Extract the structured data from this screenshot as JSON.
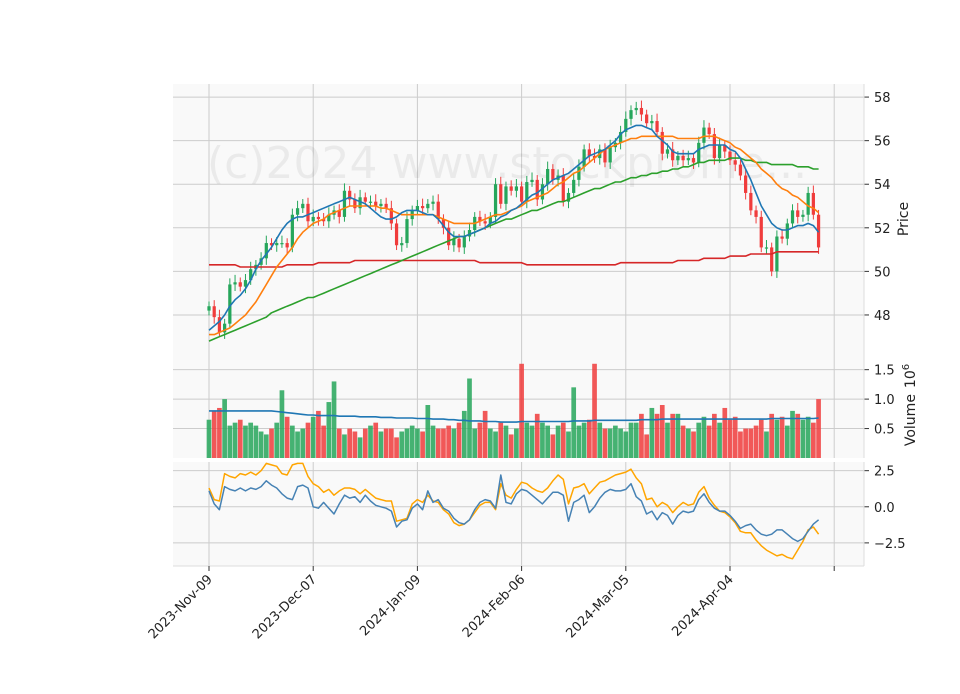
{
  "chart_data": {
    "type": "candlestick",
    "watermark": "(c)2024 www.stockprofile...",
    "x_tick_labels": [
      "2023-Nov-09",
      "2023-Dec-07",
      "2024-Jan-09",
      "2024-Feb-06",
      "2024-Mar-05",
      "2024-Apr-04"
    ],
    "x_tick_index": [
      0,
      20,
      40,
      60,
      80,
      100
    ],
    "colors": {
      "up": "#26a65b",
      "down": "#f03c3c",
      "ma_fast": "#1f77b4",
      "ma_mid": "#ff7f0e",
      "ma_slow": "#2ca02c",
      "ma_long": "#d62728",
      "vol_ma": "#1f77b4",
      "osc1": "#4682b4",
      "osc2": "#ffa500"
    },
    "price_panel": {
      "ylabel": "Price",
      "ylim": [
        46.3,
        58.6
      ],
      "yticks": [
        48,
        50,
        52,
        54,
        56,
        58
      ],
      "close": [
        48.4,
        47.9,
        47.2,
        47.6,
        49.4,
        49.5,
        49.3,
        49.6,
        50.1,
        50.3,
        50.6,
        51.3,
        51.2,
        51.3,
        51.3,
        51.1,
        52.6,
        52.9,
        53.1,
        52.3,
        52.5,
        52.4,
        52.3,
        52.6,
        52.8,
        52.5,
        53.7,
        53.3,
        52.9,
        53.4,
        53.2,
        53.2,
        53.0,
        53.1,
        52.9,
        52.2,
        51.2,
        51.3,
        52.4,
        52.8,
        53.0,
        52.9,
        53.1,
        53.2,
        52.4,
        52.0,
        51.2,
        51.5,
        51.1,
        51.6,
        51.9,
        52.5,
        52.3,
        52.2,
        52.5,
        54.0,
        53.1,
        53.9,
        53.7,
        53.9,
        53.2,
        54.1,
        54.2,
        53.3,
        54.0,
        54.7,
        54.2,
        54.4,
        53.2,
        53.6,
        54.2,
        54.8,
        55.6,
        55.3,
        55.2,
        55.6,
        55.0,
        55.7,
        55.9,
        56.4,
        57.0,
        57.4,
        57.5,
        57.2,
        56.8,
        56.9,
        56.4,
        55.4,
        55.6,
        55.1,
        55.3,
        55.1,
        55.2,
        55.0,
        55.9,
        56.6,
        56.3,
        55.2,
        55.8,
        55.5,
        55.1,
        54.9,
        54.4,
        53.6,
        52.8,
        52.5,
        51.1,
        51.1,
        50.0,
        51.6,
        51.5,
        52.2,
        52.8,
        52.5,
        52.6,
        53.6,
        52.6,
        51.1
      ],
      "ma_fast": [
        47.3,
        47.5,
        47.7,
        48.0,
        48.4,
        48.7,
        48.9,
        49.2,
        49.6,
        50.1,
        50.5,
        50.8,
        51.1,
        51.5,
        51.9,
        52.2,
        52.4,
        52.5,
        52.5,
        52.6,
        52.7,
        52.8,
        52.9,
        53.0,
        53.1,
        53.2,
        53.3,
        53.4,
        53.3,
        53.2,
        53.1,
        52.9,
        52.7,
        52.5,
        52.4,
        52.4,
        52.5,
        52.7,
        52.8,
        52.8,
        52.8,
        52.7,
        52.6,
        52.6,
        52.4,
        52.1,
        51.8,
        51.6,
        51.6,
        51.6,
        51.7,
        51.8,
        51.9,
        52.0,
        52.2,
        52.3,
        52.5,
        52.6,
        52.8,
        52.9,
        53.1,
        53.3,
        53.5,
        53.6,
        53.8,
        54.0,
        54.2,
        54.3,
        54.4,
        54.5,
        54.7,
        54.9,
        55.1,
        55.3,
        55.4,
        55.5,
        55.6,
        55.8,
        56.0,
        56.3,
        56.5,
        56.6,
        56.7,
        56.7,
        56.6,
        56.5,
        56.2,
        56.0,
        55.8,
        55.5,
        55.4,
        55.4,
        55.4,
        55.4,
        55.6,
        55.7,
        55.8,
        55.8,
        55.8,
        55.8,
        55.6,
        55.5,
        55.2,
        54.7,
        54.2,
        53.6,
        53.0,
        52.6,
        52.2,
        52.0,
        51.9,
        51.9,
        52.0,
        52.1,
        52.1,
        52.2,
        52.1,
        51.8
      ],
      "ma_mid": [
        47.1,
        47.1,
        47.2,
        47.3,
        47.4,
        47.6,
        47.8,
        48.0,
        48.3,
        48.6,
        49.0,
        49.4,
        49.8,
        50.2,
        50.5,
        50.8,
        51.1,
        51.5,
        51.8,
        52.0,
        52.2,
        52.3,
        52.4,
        52.6,
        52.7,
        52.8,
        52.9,
        53.0,
        53.0,
        53.0,
        53.0,
        53.0,
        53.0,
        52.9,
        52.9,
        52.8,
        52.7,
        52.6,
        52.6,
        52.6,
        52.6,
        52.6,
        52.6,
        52.6,
        52.5,
        52.4,
        52.3,
        52.2,
        52.2,
        52.2,
        52.2,
        52.2,
        52.3,
        52.4,
        52.5,
        52.6,
        52.6,
        52.7,
        52.8,
        52.9,
        53.0,
        53.2,
        53.3,
        53.4,
        53.5,
        53.6,
        53.8,
        54.0,
        54.1,
        54.3,
        54.5,
        54.6,
        54.8,
        55.0,
        55.2,
        55.4,
        55.6,
        55.7,
        55.8,
        55.9,
        56.0,
        56.1,
        56.1,
        56.2,
        56.2,
        56.2,
        56.2,
        56.2,
        56.2,
        56.2,
        56.1,
        56.1,
        56.1,
        56.1,
        56.1,
        56.2,
        56.2,
        56.2,
        56.1,
        56.0,
        55.9,
        55.7,
        55.6,
        55.4,
        55.2,
        55.0,
        54.7,
        54.5,
        54.3,
        54.0,
        53.8,
        53.7,
        53.5,
        53.4,
        53.2,
        53.0,
        52.9,
        52.7
      ],
      "ma_slow": [
        46.8,
        46.9,
        47.0,
        47.1,
        47.2,
        47.3,
        47.4,
        47.5,
        47.6,
        47.7,
        47.8,
        47.9,
        48.1,
        48.2,
        48.3,
        48.4,
        48.5,
        48.6,
        48.7,
        48.8,
        48.8,
        48.9,
        49.0,
        49.1,
        49.2,
        49.3,
        49.4,
        49.5,
        49.6,
        49.7,
        49.8,
        49.9,
        50.0,
        50.1,
        50.2,
        50.3,
        50.4,
        50.5,
        50.6,
        50.7,
        50.8,
        50.9,
        51.0,
        51.1,
        51.2,
        51.3,
        51.4,
        51.5,
        51.6,
        51.6,
        51.7,
        51.8,
        51.9,
        52.0,
        52.1,
        52.2,
        52.3,
        52.4,
        52.4,
        52.5,
        52.6,
        52.7,
        52.8,
        52.8,
        52.9,
        53.0,
        53.1,
        53.2,
        53.2,
        53.3,
        53.4,
        53.5,
        53.6,
        53.7,
        53.8,
        53.8,
        53.9,
        54.0,
        54.1,
        54.1,
        54.2,
        54.3,
        54.3,
        54.4,
        54.4,
        54.5,
        54.5,
        54.6,
        54.6,
        54.7,
        54.7,
        54.8,
        54.8,
        54.9,
        55.0,
        55.0,
        55.1,
        55.1,
        55.1,
        55.1,
        55.2,
        55.2,
        55.2,
        55.1,
        55.1,
        55.0,
        55.0,
        55.0,
        54.9,
        54.9,
        54.9,
        54.9,
        54.9,
        54.8,
        54.8,
        54.8,
        54.7,
        54.7
      ],
      "ma_long": [
        50.3,
        50.3,
        50.3,
        50.3,
        50.3,
        50.3,
        50.2,
        50.2,
        50.2,
        50.2,
        50.2,
        50.2,
        50.2,
        50.2,
        50.2,
        50.3,
        50.3,
        50.3,
        50.3,
        50.3,
        50.3,
        50.4,
        50.4,
        50.4,
        50.4,
        50.4,
        50.4,
        50.4,
        50.5,
        50.5,
        50.5,
        50.5,
        50.5,
        50.5,
        50.5,
        50.5,
        50.5,
        50.5,
        50.5,
        50.5,
        50.5,
        50.5,
        50.5,
        50.5,
        50.5,
        50.5,
        50.5,
        50.5,
        50.5,
        50.5,
        50.5,
        50.5,
        50.4,
        50.4,
        50.4,
        50.4,
        50.4,
        50.4,
        50.4,
        50.4,
        50.4,
        50.3,
        50.3,
        50.3,
        50.3,
        50.3,
        50.3,
        50.3,
        50.3,
        50.3,
        50.3,
        50.3,
        50.3,
        50.3,
        50.3,
        50.3,
        50.3,
        50.3,
        50.3,
        50.4,
        50.4,
        50.4,
        50.4,
        50.4,
        50.4,
        50.4,
        50.4,
        50.4,
        50.4,
        50.4,
        50.5,
        50.5,
        50.5,
        50.5,
        50.5,
        50.6,
        50.6,
        50.6,
        50.6,
        50.6,
        50.7,
        50.7,
        50.7,
        50.7,
        50.8,
        50.8,
        50.8,
        50.8,
        50.8,
        50.9,
        50.9,
        50.9,
        50.9,
        50.9,
        50.9,
        50.9,
        50.9,
        50.9
      ]
    },
    "volume_panel": {
      "ylabel": "Volume  10^6",
      "ylabel_main": "Volume",
      "ylabel_exp": "10",
      "ylabel_sup": "6",
      "ylim": [
        0,
        1.8
      ],
      "yticks": [
        0.5,
        1.0,
        1.5
      ],
      "ytick_labels": [
        "0.5",
        "1.0",
        "1.5"
      ],
      "volume": [
        0.65,
        0.8,
        0.85,
        1.0,
        0.55,
        0.6,
        0.65,
        0.55,
        0.6,
        0.55,
        0.45,
        0.4,
        0.5,
        0.6,
        1.15,
        0.7,
        0.55,
        0.45,
        0.5,
        0.6,
        0.7,
        0.8,
        0.55,
        0.95,
        1.3,
        0.5,
        0.4,
        0.5,
        0.45,
        0.35,
        0.5,
        0.55,
        0.6,
        0.45,
        0.5,
        0.5,
        0.35,
        0.45,
        0.5,
        0.55,
        0.5,
        0.45,
        0.9,
        0.55,
        0.5,
        0.5,
        0.55,
        0.5,
        0.6,
        0.8,
        1.35,
        0.5,
        0.6,
        0.8,
        0.5,
        0.45,
        0.6,
        0.55,
        0.4,
        0.5,
        1.6,
        0.6,
        0.55,
        0.75,
        0.6,
        0.55,
        0.4,
        0.55,
        0.6,
        0.45,
        1.2,
        0.55,
        0.6,
        0.65,
        1.6,
        0.6,
        0.5,
        0.5,
        0.55,
        0.5,
        0.45,
        0.6,
        0.6,
        0.75,
        0.4,
        0.85,
        0.75,
        0.9,
        0.6,
        0.75,
        0.75,
        0.55,
        0.5,
        0.45,
        0.6,
        0.7,
        0.55,
        0.75,
        0.6,
        0.85,
        0.65,
        0.7,
        0.45,
        0.5,
        0.5,
        0.55,
        0.65,
        0.45,
        0.75,
        0.65,
        0.7,
        0.55,
        0.8,
        0.75,
        0.65,
        0.7,
        0.6,
        1.0
      ],
      "vol_ma": [
        0.8,
        0.8,
        0.8,
        0.8,
        0.8,
        0.8,
        0.8,
        0.8,
        0.8,
        0.8,
        0.8,
        0.8,
        0.8,
        0.79,
        0.78,
        0.77,
        0.76,
        0.75,
        0.74,
        0.73,
        0.73,
        0.72,
        0.72,
        0.72,
        0.72,
        0.71,
        0.71,
        0.71,
        0.71,
        0.7,
        0.7,
        0.7,
        0.7,
        0.69,
        0.69,
        0.69,
        0.68,
        0.68,
        0.68,
        0.68,
        0.67,
        0.67,
        0.67,
        0.66,
        0.66,
        0.66,
        0.65,
        0.65,
        0.64,
        0.64,
        0.63,
        0.63,
        0.63,
        0.62,
        0.62,
        0.62,
        0.61,
        0.61,
        0.61,
        0.61,
        0.62,
        0.62,
        0.62,
        0.62,
        0.62,
        0.62,
        0.62,
        0.62,
        0.62,
        0.62,
        0.63,
        0.63,
        0.63,
        0.63,
        0.64,
        0.64,
        0.64,
        0.64,
        0.64,
        0.64,
        0.64,
        0.64,
        0.64,
        0.65,
        0.65,
        0.65,
        0.65,
        0.66,
        0.66,
        0.66,
        0.66,
        0.66,
        0.66,
        0.66,
        0.66,
        0.66,
        0.66,
        0.66,
        0.66,
        0.66,
        0.66,
        0.66,
        0.66,
        0.66,
        0.66,
        0.66,
        0.66,
        0.66,
        0.67,
        0.67,
        0.67,
        0.67,
        0.67,
        0.67,
        0.67,
        0.67,
        0.67,
        0.68
      ]
    },
    "oscillator_panel": {
      "ylim": [
        -4.1,
        3.1
      ],
      "yticks": [
        -2.5,
        0.0,
        2.5
      ],
      "ytick_labels": [
        "−2.5",
        "0.0",
        "2.5"
      ],
      "line1": [
        1.1,
        0.2,
        -0.2,
        1.4,
        1.2,
        1.1,
        1.3,
        1.1,
        1.3,
        1.2,
        1.4,
        1.8,
        1.5,
        1.3,
        0.9,
        0.6,
        0.5,
        1.4,
        1.5,
        1.3,
        0.0,
        -0.1,
        0.3,
        -0.1,
        -0.5,
        0.2,
        0.8,
        0.6,
        0.7,
        0.3,
        0.8,
        0.4,
        0.1,
        0.0,
        -0.1,
        -0.3,
        -1.4,
        -1.0,
        -0.9,
        -0.1,
        0.2,
        -0.2,
        1.1,
        0.3,
        0.5,
        -0.1,
        -0.3,
        -0.8,
        -1.1,
        -1.2,
        -0.9,
        -0.2,
        0.3,
        0.5,
        0.4,
        -0.1,
        2.2,
        0.3,
        0.2,
        0.9,
        1.2,
        1.1,
        0.8,
        0.5,
        0.2,
        0.6,
        1.0,
        1.0,
        0.8,
        -1.0,
        0.3,
        0.5,
        0.8,
        -0.4,
        0.0,
        0.6,
        1.0,
        1.2,
        1.1,
        1.1,
        1.2,
        1.6,
        0.7,
        0.4,
        -0.5,
        -0.3,
        -0.9,
        -0.4,
        -0.6,
        -1.2,
        -0.6,
        -0.3,
        -0.4,
        -0.3,
        0.5,
        0.9,
        0.3,
        -0.1,
        -0.3,
        -0.3,
        -0.6,
        -1.0,
        -1.5,
        -1.3,
        -1.2,
        -1.6,
        -1.9,
        -2.0,
        -1.9,
        -1.6,
        -1.6,
        -1.9,
        -2.2,
        -2.4,
        -2.2,
        -1.7,
        -1.2,
        -0.9
      ],
      "line2": [
        1.3,
        0.5,
        0.4,
        2.3,
        2.1,
        2.0,
        2.3,
        2.2,
        2.4,
        2.2,
        2.5,
        3.0,
        2.9,
        2.8,
        2.3,
        2.2,
        2.9,
        3.0,
        3.0,
        2.1,
        1.6,
        1.4,
        1.0,
        1.2,
        0.8,
        1.1,
        1.3,
        1.3,
        1.2,
        0.9,
        1.2,
        0.9,
        0.6,
        0.5,
        0.4,
        0.4,
        -1.0,
        -0.9,
        -0.8,
        0.2,
        0.5,
        0.3,
        0.8,
        0.4,
        0.3,
        -0.2,
        -0.5,
        -1.1,
        -1.3,
        -1.2,
        -0.9,
        -0.4,
        0.1,
        0.3,
        0.3,
        -0.2,
        1.6,
        0.8,
        0.6,
        1.2,
        1.7,
        1.6,
        1.3,
        1.1,
        1.0,
        1.3,
        1.8,
        2.2,
        1.9,
        0.2,
        1.3,
        1.4,
        1.6,
        0.9,
        1.3,
        1.7,
        1.8,
        2.0,
        2.2,
        2.3,
        2.4,
        2.6,
        2.0,
        1.6,
        0.5,
        0.6,
        0.0,
        0.3,
        0.1,
        -0.4,
        0.0,
        0.3,
        0.1,
        0.2,
        1.0,
        1.4,
        0.6,
        0.1,
        -0.3,
        -0.4,
        -0.7,
        -1.1,
        -1.7,
        -1.8,
        -1.8,
        -2.3,
        -2.7,
        -3.0,
        -3.2,
        -3.4,
        -3.3,
        -3.5,
        -3.6,
        -3.0,
        -2.4,
        -1.6,
        -1.4,
        -1.9
      ]
    }
  }
}
